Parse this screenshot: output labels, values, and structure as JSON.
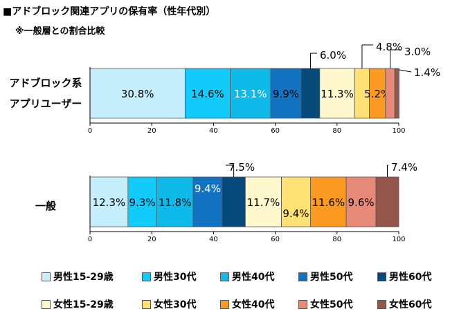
{
  "title": "■アドブロック関連アプリの保有率（性年代別）",
  "subtitle": "※一般層との割合比較",
  "colors": [
    "#c6effe",
    "#12cbfb",
    "#0fbaea",
    "#1373c3",
    "#06497b",
    "#fff8cc",
    "#ffe273",
    "#fd9a21",
    "#e88a7a",
    "#94564a"
  ],
  "chart_data": {
    "type": "bar",
    "orientation": "horizontal",
    "stacked": true,
    "xlim": [
      0,
      100
    ],
    "xticks": [
      "0",
      "20",
      "40",
      "60",
      "80",
      "100"
    ],
    "categories": [
      {
        "name": "adblock",
        "label_lines": [
          "アドブロック系",
          "アプリユーザー"
        ]
      },
      {
        "name": "general",
        "label_lines": [
          "一般"
        ]
      }
    ],
    "series": [
      {
        "name": "男性15-29歳",
        "values": [
          30.8,
          12.3
        ],
        "labels": [
          "30.8%",
          "12.3%"
        ]
      },
      {
        "name": "男性30代",
        "values": [
          14.6,
          9.3
        ],
        "labels": [
          "14.6%",
          "9.3%"
        ]
      },
      {
        "name": "男性40代",
        "values": [
          13.1,
          11.8
        ],
        "labels": [
          "13.1%",
          "11.8%"
        ]
      },
      {
        "name": "男性50代",
        "values": [
          9.9,
          9.4
        ],
        "labels": [
          "9.9%",
          "9.4%"
        ]
      },
      {
        "name": "男性60代",
        "values": [
          6.0,
          7.5
        ],
        "labels": [
          "6.0%",
          "7.5%"
        ]
      },
      {
        "name": "女性15-29歳",
        "values": [
          11.3,
          11.7
        ],
        "labels": [
          "11.3%",
          "11.7%"
        ]
      },
      {
        "name": "女性30代",
        "values": [
          4.8,
          9.4
        ],
        "labels": [
          "4.8%",
          "9.4%"
        ]
      },
      {
        "name": "女性40代",
        "values": [
          5.2,
          11.6
        ],
        "labels": [
          "5.2%",
          "11.6%"
        ]
      },
      {
        "name": "女性50代",
        "values": [
          3.0,
          9.6
        ],
        "labels": [
          "3.0%",
          "9.6%"
        ]
      },
      {
        "name": "女性60代",
        "values": [
          1.4,
          7.4
        ],
        "labels": [
          "1.4%",
          "7.4%"
        ]
      }
    ]
  }
}
